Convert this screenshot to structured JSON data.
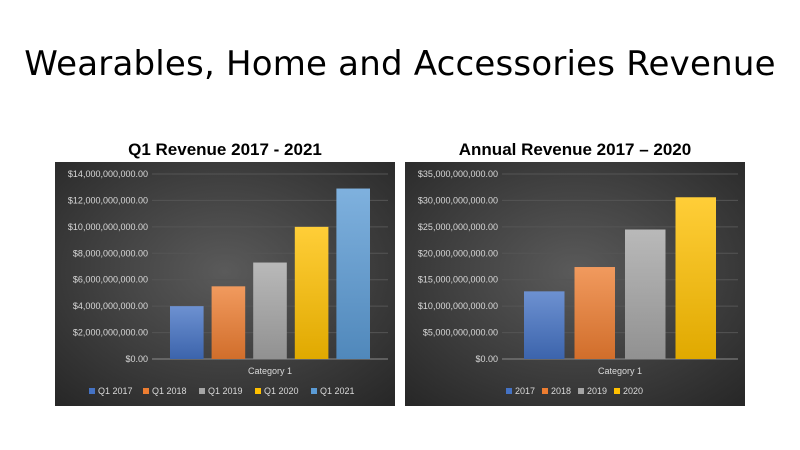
{
  "slide": {
    "title": "Wearables, Home and Accessories Revenue"
  },
  "colors": {
    "blue": "#4472c4",
    "orange": "#ed7d31",
    "gray": "#a5a5a5",
    "gold": "#ffc000",
    "lightblue": "#5b9bd5",
    "chart_bg": "#3a3a3a"
  },
  "chart_data": [
    {
      "type": "bar",
      "title": "Q1 Revenue 2017 - 2021",
      "categories": [
        "Category 1"
      ],
      "series": [
        {
          "name": "Q1 2017",
          "values": [
            4000000000
          ],
          "color": "#4472c4"
        },
        {
          "name": "Q1 2018",
          "values": [
            5500000000
          ],
          "color": "#ed7d31"
        },
        {
          "name": "Q1 2019",
          "values": [
            7300000000
          ],
          "color": "#a5a5a5"
        },
        {
          "name": "Q1 2020",
          "values": [
            10000000000
          ],
          "color": "#ffc000"
        },
        {
          "name": "Q1 2021",
          "values": [
            12900000000
          ],
          "color": "#5b9bd5"
        }
      ],
      "ylim": [
        0,
        14000000000
      ],
      "yticks": [
        0,
        2000000000,
        4000000000,
        6000000000,
        8000000000,
        10000000000,
        12000000000,
        14000000000
      ],
      "ytick_labels": [
        "$0.00",
        "$2,000,000,000.00",
        "$4,000,000,000.00",
        "$6,000,000,000.00",
        "$8,000,000,000.00",
        "$10,000,000,000.00",
        "$12,000,000,000.00",
        "$14,000,000,000.00"
      ],
      "grid": true,
      "legend": "bottom"
    },
    {
      "type": "bar",
      "title": "Annual Revenue 2017 – 2020",
      "categories": [
        "Category 1"
      ],
      "series": [
        {
          "name": "2017",
          "values": [
            12800000000
          ],
          "color": "#4472c4"
        },
        {
          "name": "2018",
          "values": [
            17400000000
          ],
          "color": "#ed7d31"
        },
        {
          "name": "2019",
          "values": [
            24500000000
          ],
          "color": "#a5a5a5"
        },
        {
          "name": "2020",
          "values": [
            30600000000
          ],
          "color": "#ffc000"
        }
      ],
      "ylim": [
        0,
        35000000000
      ],
      "yticks": [
        0,
        5000000000,
        10000000000,
        15000000000,
        20000000000,
        25000000000,
        30000000000,
        35000000000
      ],
      "ytick_labels": [
        "$0.00",
        "$5,000,000,000.00",
        "$10,000,000,000.00",
        "$15,000,000,000.00",
        "$20,000,000,000.00",
        "$25,000,000,000.00",
        "$30,000,000,000.00",
        "$35,000,000,000.00"
      ],
      "grid": true,
      "legend": "bottom"
    }
  ]
}
